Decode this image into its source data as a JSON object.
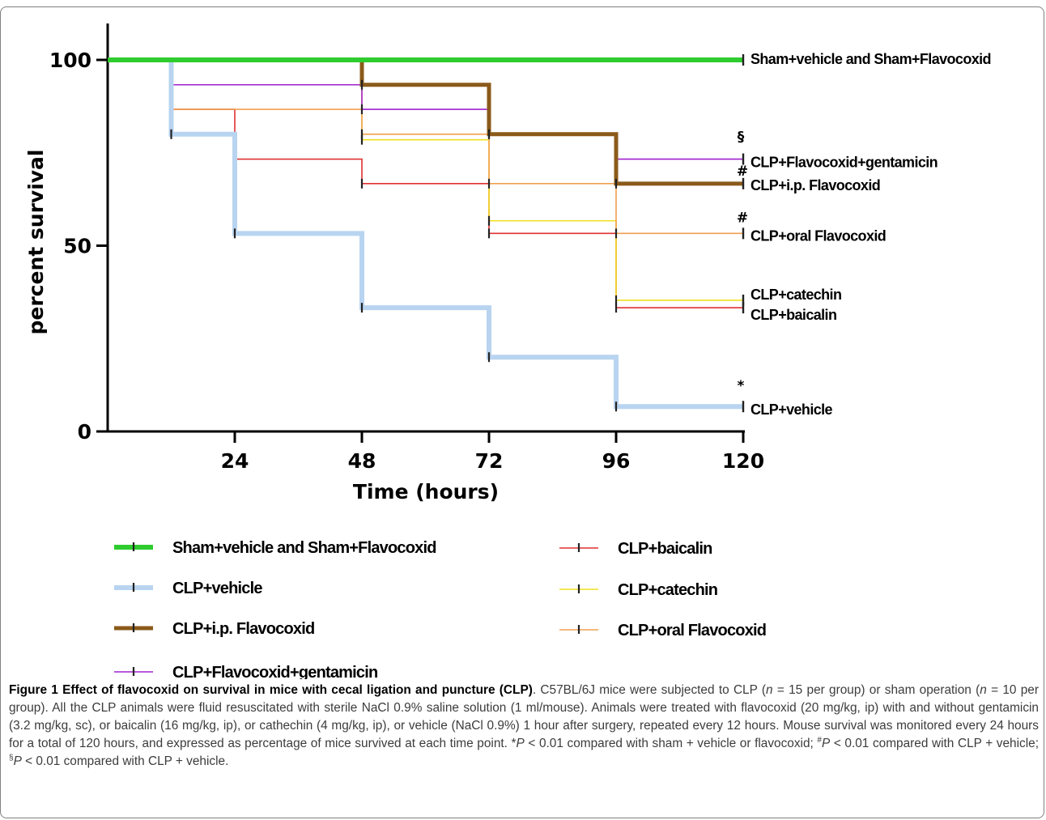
{
  "chart_data": {
    "type": "line",
    "xlabel": "Time (hours)",
    "ylabel": "percent survival",
    "xlim": [
      0,
      120
    ],
    "ylim": [
      0,
      100
    ],
    "xticks": [
      24,
      48,
      72,
      96,
      120
    ],
    "yticks": [
      0,
      50,
      100
    ],
    "grid": false,
    "legend_position": "bottom",
    "series": [
      {
        "name": "Sham+vehicle and Sham+Flavocoxid",
        "color": "#2ecc2e",
        "times": [
          0,
          120
        ],
        "values": [
          100,
          100
        ],
        "censored": [
          120
        ],
        "end_label": "Sham+vehicle and Sham+Flavocoxid",
        "mark": ""
      },
      {
        "name": "CLP+vehicle",
        "color": "#b8d4f0",
        "times": [
          0,
          12,
          24,
          48,
          72,
          96,
          120
        ],
        "values": [
          100,
          80,
          53.3,
          33.3,
          20,
          6.7,
          6.7
        ],
        "censored": [
          120
        ],
        "end_label": "CLP+vehicle",
        "mark": "*"
      },
      {
        "name": "CLP+i.p. Flavocoxid",
        "color": "#8b5a1a",
        "times": [
          0,
          48,
          72,
          96,
          120
        ],
        "values": [
          100,
          93.3,
          80,
          66.7,
          66.7
        ],
        "censored": [
          120
        ],
        "end_label": "CLP+i.p. Flavocoxid",
        "mark": "#"
      },
      {
        "name": "CLP+Flavocoxid+gentamicin",
        "color": "#a020d0",
        "times": [
          0,
          12,
          48,
          72,
          96,
          120
        ],
        "values": [
          100,
          93.3,
          86.7,
          80,
          73.3,
          73.3
        ],
        "censored": [
          120
        ],
        "end_label": "CLP+Flavocoxid+gentamicin",
        "mark": "§"
      },
      {
        "name": "CLP+baicalin",
        "color": "#e03030",
        "times": [
          0,
          12,
          24,
          48,
          72,
          96,
          120
        ],
        "values": [
          100,
          86.7,
          73.3,
          66.7,
          53.3,
          33.3,
          33.3
        ],
        "censored": [
          120
        ],
        "end_label": "CLP+baicalin",
        "mark": ""
      },
      {
        "name": "CLP+catechin",
        "color": "#f0e020",
        "times": [
          0,
          12,
          48,
          72,
          96,
          120
        ],
        "values": [
          100,
          93.3,
          78.5,
          56.7,
          35.3,
          35.3
        ],
        "censored": [
          120
        ],
        "end_label": "CLP+catechin",
        "mark": ""
      },
      {
        "name": "CLP+oral Flavocoxid",
        "color": "#f0a050",
        "times": [
          0,
          12,
          48,
          72,
          96,
          120
        ],
        "values": [
          100,
          86.7,
          80,
          66.7,
          53.3,
          53.3
        ],
        "censored": [
          120
        ],
        "end_label": "CLP+oral Flavocoxid",
        "mark": "#"
      }
    ],
    "legend": [
      {
        "label": "Sham+vehicle and Sham+Flavocoxid",
        "series": 0
      },
      {
        "label": "CLP+vehicle",
        "series": 1
      },
      {
        "label": "CLP+i.p. Flavocoxid",
        "series": 2
      },
      {
        "label": "CLP+Flavocoxid+gentamicin",
        "series": 3
      },
      {
        "label": "CLP+baicalin",
        "series": 4
      },
      {
        "label": "CLP+catechin",
        "series": 5
      },
      {
        "label": "CLP+oral Flavocoxid",
        "series": 6
      }
    ]
  },
  "caption": {
    "heading": "Figure 1 Effect of flavocoxid on survival in mice with cecal ligation and puncture (CLP)",
    "t1": ". C57BL/6J mice were subjected to CLP (",
    "n": "n",
    "t2": " = 15 per group) or sham operation (",
    "t3": " = 10 per group). All the CLP animals were fluid resuscitated with sterile NaCl 0.9% saline solution (1 ml/mouse). Animals were treated with flavocoxid (20 mg/kg, ip) with and without gentamicin (3.2 mg/kg, sc), or baicalin (16 mg/kg, ip), or cathechin (4 mg/kg, ip), or vehicle (NaCl 0.9%) 1 hour after surgery, repeated every 12 hours. Mouse survival was monitored every 24 hours for a total of 120 hours, and expressed as percentage of mice survived at each time point. *",
    "p": "P",
    "t4": " < 0.01 compared with sham + vehicle or flavocoxid; ",
    "hash": "#",
    "t5": " < 0.01 compared with CLP + vehicle; ",
    "sect": "§",
    "t6": " < 0.01 compared with CLP + vehicle."
  }
}
